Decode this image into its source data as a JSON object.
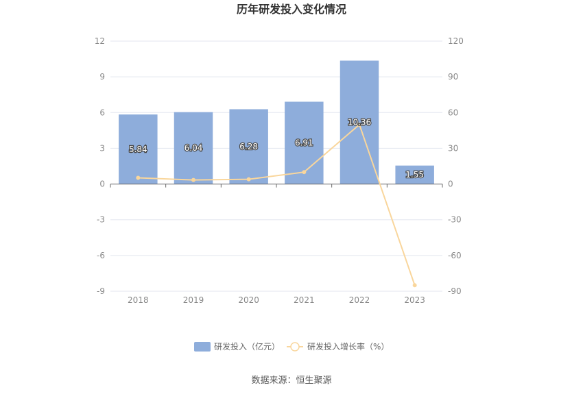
{
  "colors": {
    "bar": "#8eaddb",
    "line": "#f9d69c",
    "grid": "#e3e6ef",
    "axis": "#666666"
  },
  "chart_data": {
    "type": "bar",
    "title": "历年研发投入变化情况",
    "categories": [
      "2018",
      "2019",
      "2020",
      "2021",
      "2022",
      "2023"
    ],
    "series": [
      {
        "name": "研发投入（亿元）",
        "type": "bar",
        "axis": "left",
        "values": [
          5.84,
          6.04,
          6.28,
          6.91,
          10.36,
          1.55
        ],
        "labels": [
          "5.84",
          "6.04",
          "6.28",
          "6.91",
          "10.36",
          "1.55"
        ]
      },
      {
        "name": "研发投入增长率（%）",
        "type": "line",
        "axis": "right",
        "values": [
          5.2,
          3.4,
          4.0,
          10.0,
          49.9,
          -85.0
        ]
      }
    ],
    "y_left": {
      "min": -9,
      "max": 12,
      "ticks": [
        "12",
        "9",
        "6",
        "3",
        "0",
        "-3",
        "-6",
        "-9"
      ]
    },
    "y_right": {
      "min": -90,
      "max": 120,
      "ticks": [
        "120",
        "90",
        "60",
        "30",
        "0",
        "-30",
        "-60",
        "-90"
      ]
    },
    "grid": true,
    "legend_position": "bottom"
  },
  "source": "数据来源：恒生聚源"
}
